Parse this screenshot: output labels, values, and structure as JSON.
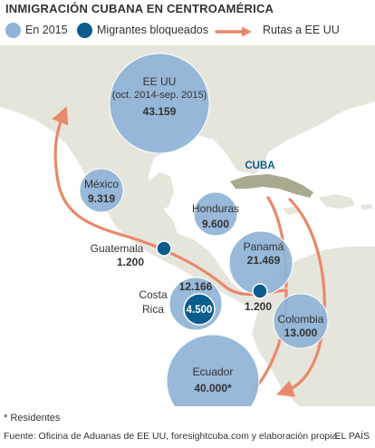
{
  "title": "INMIGRACIÓN CUBANA EN CENTROAMÉRICA",
  "legend": {
    "items": [
      {
        "label": "En 2015",
        "color": "#8fb3d6"
      },
      {
        "label": "Migrantes bloqueados",
        "color": "#0b5d8e"
      },
      {
        "label": "Rutas a EE UU",
        "color": "#e8896a"
      }
    ]
  },
  "colors": {
    "land": "#e6e5dc",
    "sea": "#ffffff",
    "circle_fill": "#8fb3d6",
    "circle_stroke": "#7a9fc6",
    "blocked": "#0b5d8e",
    "route": "#e8896a",
    "cuba": "#a8a98e",
    "cuba_label": "#0b5d8e"
  },
  "map": {
    "circles": [
      {
        "name": "usa",
        "line1": "EE UU",
        "line2": "(oct. 2014-sep. 2015)",
        "value": "43.159",
        "number": 43159
      },
      {
        "name": "mexico",
        "line1": "México",
        "value": "9.319",
        "number": 9319
      },
      {
        "name": "honduras",
        "line1": "Honduras",
        "value": "9.600",
        "number": 9600
      },
      {
        "name": "panama",
        "line1": "Panamá",
        "value": "21.469",
        "number": 21469
      },
      {
        "name": "costa-rica",
        "line1": "Costa",
        "line2": "Rica",
        "value": "12.166",
        "number": 12166
      },
      {
        "name": "colombia",
        "line1": "Colombia",
        "value": "13.000",
        "number": 13000
      },
      {
        "name": "ecuador",
        "line1": "Ecuador",
        "value": "40.000*",
        "number": 40000
      }
    ],
    "blocked": [
      {
        "name": "guatemala",
        "line1": "Guatemala",
        "value": "1.200",
        "number": 1200
      },
      {
        "name": "costa-rica",
        "value": "4.500",
        "number": 4500
      },
      {
        "name": "panama",
        "value": "1.200",
        "number": 1200
      }
    ],
    "cuba_label": "CUBA"
  },
  "note": "* Residentes",
  "footer": {
    "source": "Fuente: Oficina de Aduanas de EE UU, foresightcuba.com y elaboración propia.",
    "brand": "EL PAÍS"
  }
}
